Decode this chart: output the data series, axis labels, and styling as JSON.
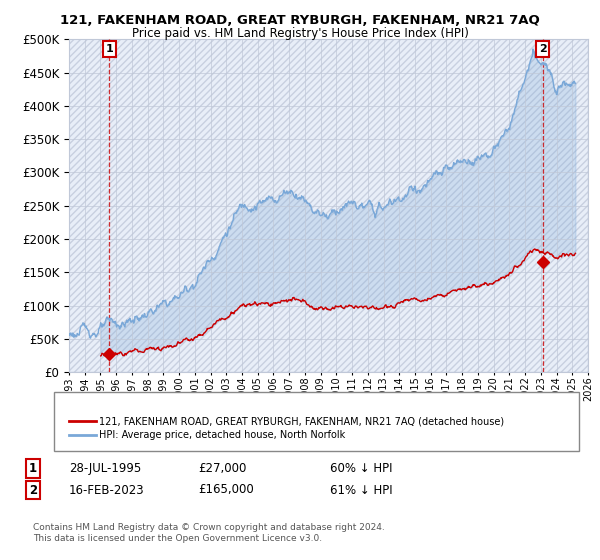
{
  "title": "121, FAKENHAM ROAD, GREAT RYBURGH, FAKENHAM, NR21 7AQ",
  "subtitle": "Price paid vs. HM Land Registry's House Price Index (HPI)",
  "background_color": "#ffffff",
  "plot_bg_color": "#e8eef8",
  "hatch_color": "#c8d0e0",
  "grid_color": "#c0c8d8",
  "sale1_date": 1995.57,
  "sale1_price": 27000,
  "sale2_date": 2023.12,
  "sale2_price": 165000,
  "legend_line1": "121, FAKENHAM ROAD, GREAT RYBURGH, FAKENHAM, NR21 7AQ (detached house)",
  "legend_line2": "HPI: Average price, detached house, North Norfolk",
  "hpi_color": "#7aa8d8",
  "price_color": "#cc0000",
  "xmin": 1993,
  "xmax": 2026,
  "ymin": 0,
  "ymax": 500000,
  "ann1_date": "28-JUL-1995",
  "ann1_price": "£27,000",
  "ann1_hpi": "60% ↓ HPI",
  "ann2_date": "16-FEB-2023",
  "ann2_price": "£165,000",
  "ann2_hpi": "61% ↓ HPI",
  "footnote1": "Contains HM Land Registry data © Crown copyright and database right 2024.",
  "footnote2": "This data is licensed under the Open Government Licence v3.0."
}
